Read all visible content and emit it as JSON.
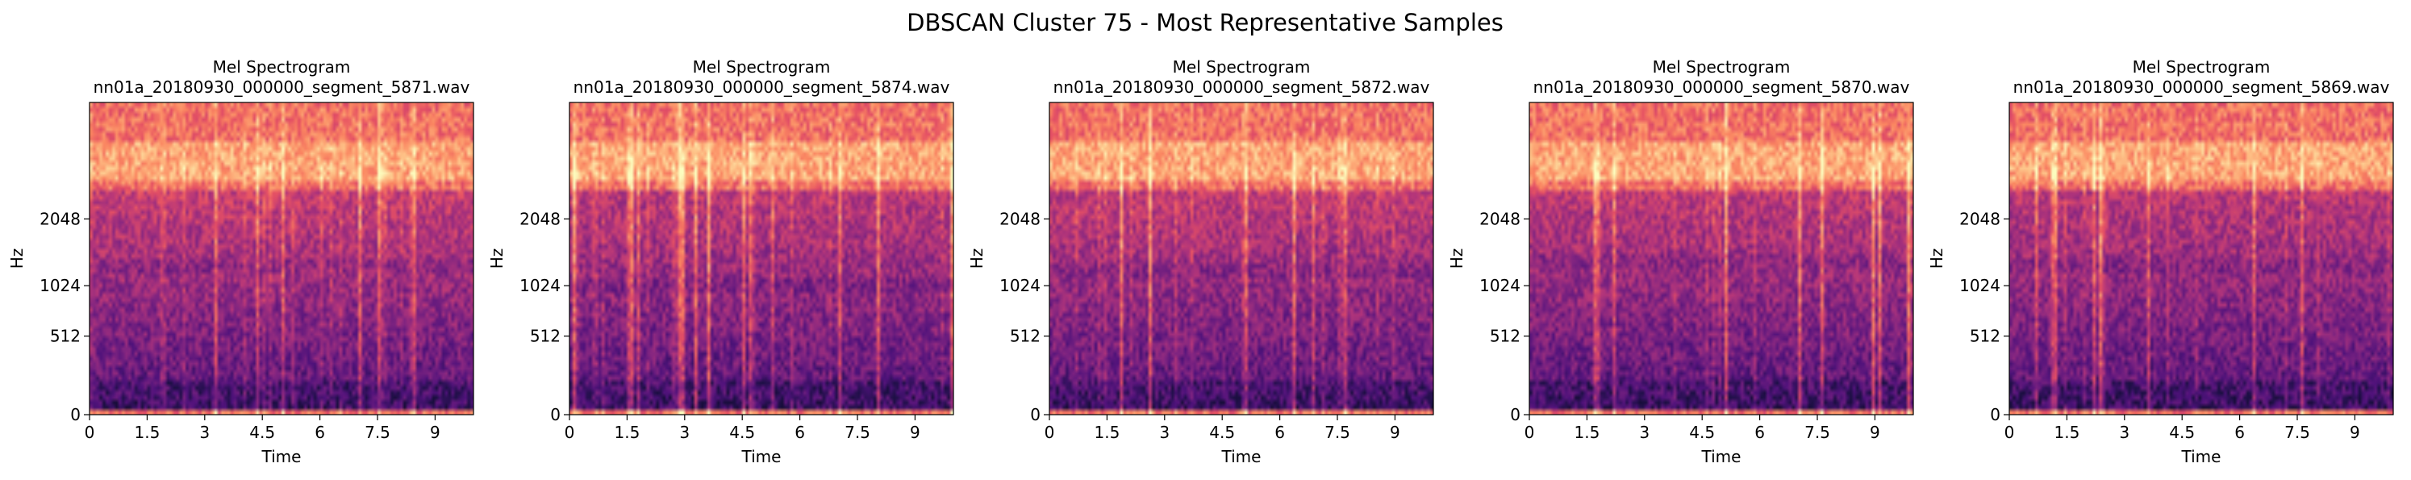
{
  "figure": {
    "title": "DBSCAN Cluster 75 - Most Representative Samples"
  },
  "chart_data": [
    {
      "type": "heatmap",
      "title": "Mel Spectrogram",
      "subtitle": "nn01a_20180930_000000_segment_5871.wav",
      "xlabel": "Time",
      "ylabel": "Hz",
      "x_ticks": [
        "0",
        "1.5",
        "3",
        "4.5",
        "6",
        "7.5",
        "9"
      ],
      "y_ticks": [
        "0",
        "512",
        "1024",
        "2048"
      ],
      "xlim": [
        0,
        10
      ],
      "y_scale": "mel",
      "colormap": "magma",
      "seed": 5871,
      "intensity": 0.62
    },
    {
      "type": "heatmap",
      "title": "Mel Spectrogram",
      "subtitle": "nn01a_20180930_000000_segment_5874.wav",
      "xlabel": "Time",
      "ylabel": "Hz",
      "x_ticks": [
        "0",
        "1.5",
        "3",
        "4.5",
        "6",
        "7.5",
        "9"
      ],
      "y_ticks": [
        "0",
        "512",
        "1024",
        "2048"
      ],
      "xlim": [
        0,
        10
      ],
      "y_scale": "mel",
      "colormap": "magma",
      "seed": 5874,
      "intensity": 0.45
    },
    {
      "type": "heatmap",
      "title": "Mel Spectrogram",
      "subtitle": "nn01a_20180930_000000_segment_5872.wav",
      "xlabel": "Time",
      "ylabel": "Hz",
      "x_ticks": [
        "0",
        "1.5",
        "3",
        "4.5",
        "6",
        "7.5",
        "9"
      ],
      "y_ticks": [
        "0",
        "512",
        "1024",
        "2048"
      ],
      "xlim": [
        0,
        10
      ],
      "y_scale": "mel",
      "colormap": "magma",
      "seed": 5872,
      "intensity": 0.55
    },
    {
      "type": "heatmap",
      "title": "Mel Spectrogram",
      "subtitle": "nn01a_20180930_000000_segment_5870.wav",
      "xlabel": "Time",
      "ylabel": "Hz",
      "x_ticks": [
        "0",
        "1.5",
        "3",
        "4.5",
        "6",
        "7.5",
        "9"
      ],
      "y_ticks": [
        "0",
        "512",
        "1024",
        "2048"
      ],
      "xlim": [
        0,
        10
      ],
      "y_scale": "mel",
      "colormap": "magma",
      "seed": 5870,
      "intensity": 0.5
    },
    {
      "type": "heatmap",
      "title": "Mel Spectrogram",
      "subtitle": "nn01a_20180930_000000_segment_5869.wav",
      "xlabel": "Time",
      "ylabel": "Hz",
      "x_ticks": [
        "0",
        "1.5",
        "3",
        "4.5",
        "6",
        "7.5",
        "9"
      ],
      "y_ticks": [
        "0",
        "512",
        "1024",
        "2048"
      ],
      "xlim": [
        0,
        10
      ],
      "y_scale": "mel",
      "colormap": "magma",
      "seed": 5869,
      "intensity": 0.42
    }
  ]
}
